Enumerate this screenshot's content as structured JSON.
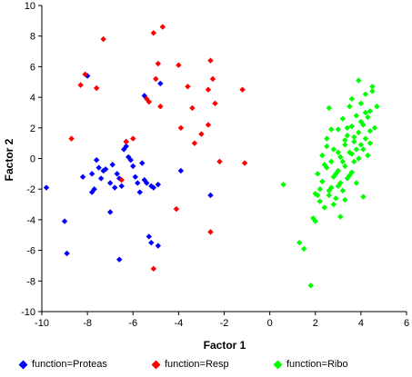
{
  "chart_data": {
    "type": "scatter",
    "xlabel": "Factor 1",
    "ylabel": "Factor 2",
    "xlim": [
      -10,
      6
    ],
    "ylim": [
      -10,
      10
    ],
    "xticks": [
      -10,
      -8,
      -6,
      -4,
      -2,
      0,
      2,
      4,
      6
    ],
    "yticks": [
      -10,
      -8,
      -6,
      -4,
      -2,
      0,
      2,
      4,
      6,
      8,
      10
    ],
    "grid": false,
    "legend_position": "bottom",
    "series": [
      {
        "name": "function=Proteas",
        "color": "#0000ff",
        "points": [
          [
            -9.8,
            -1.9
          ],
          [
            -9.0,
            -4.1
          ],
          [
            -8.9,
            -6.2
          ],
          [
            -8.2,
            -1.2
          ],
          [
            -7.8,
            -2.2
          ],
          [
            -7.8,
            -1.0
          ],
          [
            -7.7,
            -2.0
          ],
          [
            -7.6,
            -0.1
          ],
          [
            -7.5,
            -0.6
          ],
          [
            -7.4,
            -1.3
          ],
          [
            -7.3,
            -0.8
          ],
          [
            -7.2,
            -0.7
          ],
          [
            -7.0,
            -3.5
          ],
          [
            -7.0,
            -1.6
          ],
          [
            -6.9,
            -0.4
          ],
          [
            -6.8,
            -1.9
          ],
          [
            -6.7,
            -1.0
          ],
          [
            -6.6,
            -1.3
          ],
          [
            -6.5,
            -1.8
          ],
          [
            -6.4,
            0.6
          ],
          [
            -6.3,
            1.1
          ],
          [
            -6.2,
            0.1
          ],
          [
            -6.1,
            -0.1
          ],
          [
            -6.0,
            -0.5
          ],
          [
            -5.9,
            -1.2
          ],
          [
            -5.8,
            -1.6
          ],
          [
            -5.7,
            -2.2
          ],
          [
            -5.6,
            -0.3
          ],
          [
            -5.5,
            -1.4
          ],
          [
            -5.4,
            -1.6
          ],
          [
            -5.3,
            -5.1
          ],
          [
            -5.2,
            -1.8
          ],
          [
            -5.2,
            -5.5
          ],
          [
            -5.1,
            -1.9
          ],
          [
            -4.9,
            -5.7
          ],
          [
            -5.5,
            4.1
          ],
          [
            -4.8,
            4.9
          ],
          [
            -4.9,
            -1.7
          ],
          [
            -6.6,
            -6.6
          ],
          [
            -6.3,
            0.8
          ],
          [
            -3.9,
            -0.8
          ],
          [
            -2.6,
            -2.4
          ],
          [
            -8.0,
            5.4
          ]
        ]
      },
      {
        "name": "function=Resp",
        "color": "#ff0000",
        "points": [
          [
            -8.3,
            4.8
          ],
          [
            -8.1,
            5.5
          ],
          [
            -8.7,
            1.3
          ],
          [
            -7.6,
            4.6
          ],
          [
            -7.3,
            7.8
          ],
          [
            -6.5,
            -1.4
          ],
          [
            -6.3,
            1.1
          ],
          [
            -6.0,
            1.3
          ],
          [
            -5.4,
            3.9
          ],
          [
            -5.3,
            3.7
          ],
          [
            -5.1,
            8.2
          ],
          [
            -4.9,
            6.2
          ],
          [
            -4.8,
            3.4
          ],
          [
            -4.7,
            8.6
          ],
          [
            -4.0,
            6.1
          ],
          [
            -3.9,
            2.0
          ],
          [
            -3.6,
            4.7
          ],
          [
            -3.4,
            3.3
          ],
          [
            -3.3,
            1.0
          ],
          [
            -3.0,
            1.6
          ],
          [
            -2.7,
            2.2
          ],
          [
            -2.7,
            4.5
          ],
          [
            -2.6,
            6.4
          ],
          [
            -2.5,
            5.2
          ],
          [
            -2.4,
            3.6
          ],
          [
            -2.2,
            -0.2
          ],
          [
            -1.2,
            4.5
          ],
          [
            -1.1,
            -0.3
          ],
          [
            -4.1,
            -3.3
          ],
          [
            -5.1,
            -7.2
          ],
          [
            -2.6,
            -4.8
          ],
          [
            -5.0,
            5.2
          ]
        ]
      },
      {
        "name": "function=Ribo",
        "color": "#00ff00",
        "points": [
          [
            0.6,
            -1.7
          ],
          [
            1.3,
            -5.5
          ],
          [
            1.5,
            -5.9
          ],
          [
            1.8,
            -8.3
          ],
          [
            1.9,
            -3.9
          ],
          [
            2.0,
            -2.3
          ],
          [
            2.1,
            -1.0
          ],
          [
            2.2,
            -2.8
          ],
          [
            2.3,
            0.2
          ],
          [
            2.3,
            -1.5
          ],
          [
            2.4,
            -3.2
          ],
          [
            2.5,
            -0.6
          ],
          [
            2.5,
            1.3
          ],
          [
            2.6,
            -2.1
          ],
          [
            2.6,
            3.3
          ],
          [
            2.7,
            -0.2
          ],
          [
            2.7,
            -1.9
          ],
          [
            2.8,
            0.6
          ],
          [
            2.8,
            -1.2
          ],
          [
            2.9,
            -2.6
          ],
          [
            3.0,
            1.9
          ],
          [
            3.0,
            -0.8
          ],
          [
            3.1,
            0.1
          ],
          [
            3.1,
            -1.6
          ],
          [
            3.2,
            2.6
          ],
          [
            3.2,
            -2.1
          ],
          [
            3.3,
            0.9
          ],
          [
            3.3,
            -0.5
          ],
          [
            3.4,
            1.5
          ],
          [
            3.4,
            -1.3
          ],
          [
            3.5,
            0.4
          ],
          [
            3.5,
            3.4
          ],
          [
            3.6,
            -0.9
          ],
          [
            3.6,
            2.1
          ],
          [
            3.7,
            1.1
          ],
          [
            3.7,
            -0.2
          ],
          [
            3.8,
            2.8
          ],
          [
            3.8,
            0.6
          ],
          [
            3.9,
            1.7
          ],
          [
            3.9,
            5.1
          ],
          [
            4.0,
            0.9
          ],
          [
            4.0,
            3.6
          ],
          [
            4.1,
            2.2
          ],
          [
            4.1,
            -2.5
          ],
          [
            4.2,
            1.3
          ],
          [
            4.2,
            4.2
          ],
          [
            4.3,
            2.7
          ],
          [
            4.3,
            0.2
          ],
          [
            4.4,
            3.1
          ],
          [
            4.4,
            1.8
          ],
          [
            4.5,
            4.7
          ],
          [
            4.5,
            4.4
          ],
          [
            4.6,
            2.0
          ],
          [
            4.7,
            3.4
          ],
          [
            4.2,
            3.0
          ],
          [
            3.1,
            -3.8
          ],
          [
            2.9,
            -1.0
          ],
          [
            3.5,
            -1.1
          ],
          [
            3.9,
            0.0
          ],
          [
            2.4,
            -0.4
          ],
          [
            3.0,
            0.4
          ],
          [
            3.3,
            1.2
          ],
          [
            2.2,
            -2.0
          ],
          [
            2.6,
            -2.4
          ],
          [
            3.6,
            0.3
          ],
          [
            4.0,
            2.4
          ],
          [
            3.2,
            -0.2
          ],
          [
            2.8,
            -3.0
          ],
          [
            3.4,
            2.0
          ],
          [
            2.5,
            0.8
          ],
          [
            3.7,
            1.4
          ],
          [
            2.0,
            -4.1
          ],
          [
            3.8,
            -1.6
          ],
          [
            4.4,
            1.0
          ],
          [
            2.1,
            -2.4
          ],
          [
            3.0,
            -1.8
          ],
          [
            3.6,
            3.9
          ],
          [
            2.7,
            1.9
          ],
          [
            4.1,
            0.6
          ],
          [
            3.3,
            -2.7
          ]
        ]
      }
    ]
  }
}
